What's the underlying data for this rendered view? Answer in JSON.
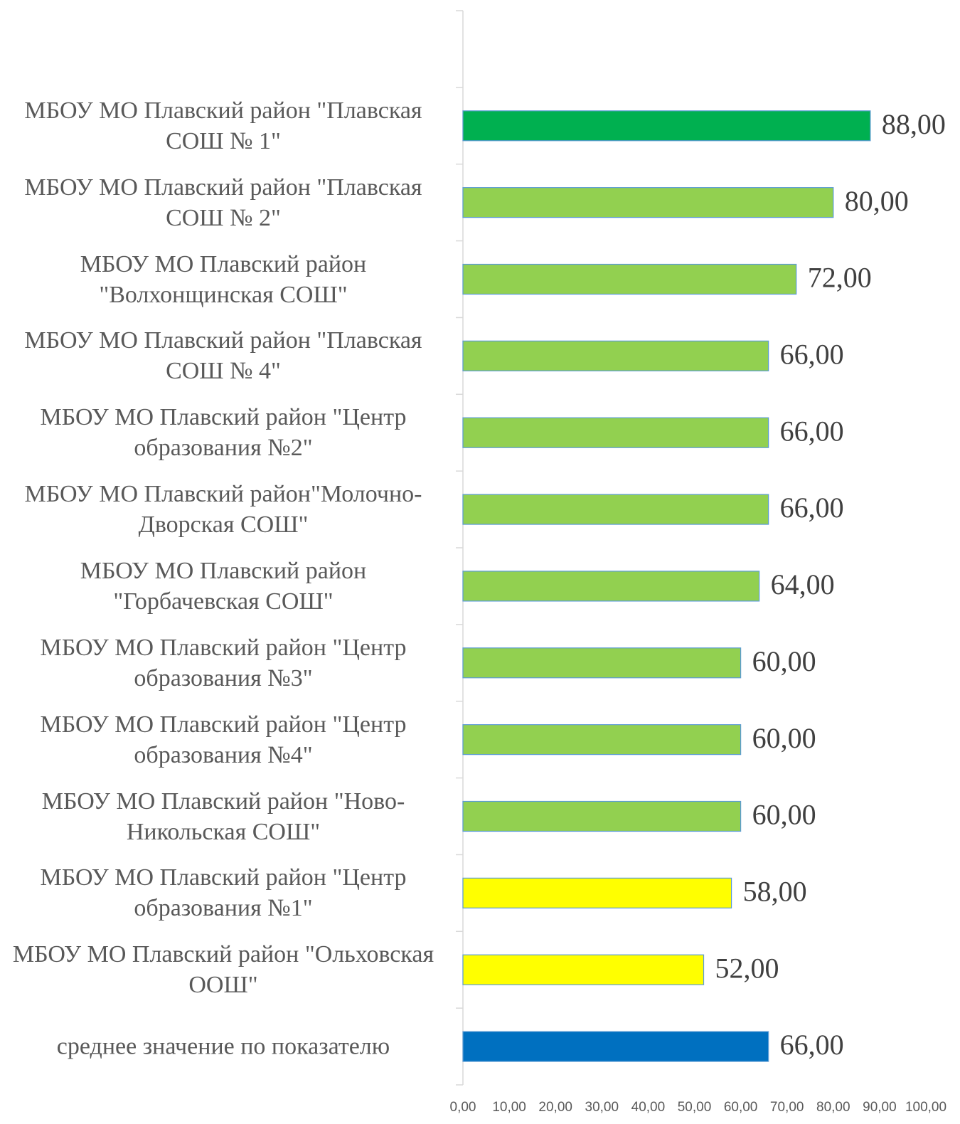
{
  "chart_data": {
    "type": "bar",
    "orientation": "horizontal",
    "categories": [
      null,
      "МБОУ МО Плавский район \"Плавская СОШ № 1\"",
      "МБОУ МО Плавский район \"Плавская СОШ № 2\"",
      "МБОУ МО Плавский район \"Волхонщинская СОШ\"",
      "МБОУ МО Плавский район \"Плавская СОШ № 4\"",
      "МБОУ МО Плавский район \"Центр образования №2\"",
      "МБОУ МО Плавский район\"Молочно-Дворская СОШ\"",
      "МБОУ МО Плавский район \"Горбачевская СОШ\"",
      "МБОУ МО Плавский район \"Центр образования №3\"",
      "МБОУ МО Плавский район \"Центр образования №4\"",
      "МБОУ МО Плавский район \"Ново-Никольская СОШ\"",
      "МБОУ МО Плавский район \"Центр образования №1\"",
      "МБОУ МО Плавский район \"Ольховская ООШ\"",
      "среднее значение по показателю"
    ],
    "values": [
      null,
      88,
      80,
      72,
      66,
      66,
      66,
      64,
      60,
      60,
      60,
      58,
      52,
      66
    ],
    "value_labels": [
      null,
      "88,00",
      "80,00",
      "72,00",
      "66,00",
      "66,00",
      "66,00",
      "64,00",
      "60,00",
      "60,00",
      "60,00",
      "58,00",
      "52,00",
      "66,00"
    ],
    "colors": [
      null,
      "#00b050",
      "#92d050",
      "#92d050",
      "#92d050",
      "#92d050",
      "#92d050",
      "#92d050",
      "#92d050",
      "#92d050",
      "#92d050",
      "#ffff00",
      "#ffff00",
      "#0070c0"
    ],
    "xlim": [
      0,
      100
    ],
    "xticks": [
      {
        "value": 0,
        "label": "0,00"
      },
      {
        "value": 10,
        "label": "10,00"
      },
      {
        "value": 20,
        "label": "20,00"
      },
      {
        "value": 30,
        "label": "30,00"
      },
      {
        "value": 40,
        "label": "40,00"
      },
      {
        "value": 50,
        "label": "50,00"
      },
      {
        "value": 60,
        "label": "60,00"
      },
      {
        "value": 70,
        "label": "70,00"
      },
      {
        "value": 80,
        "label": "80,00"
      },
      {
        "value": 90,
        "label": "90,00"
      },
      {
        "value": 100,
        "label": "100,00"
      }
    ],
    "grid": false
  }
}
